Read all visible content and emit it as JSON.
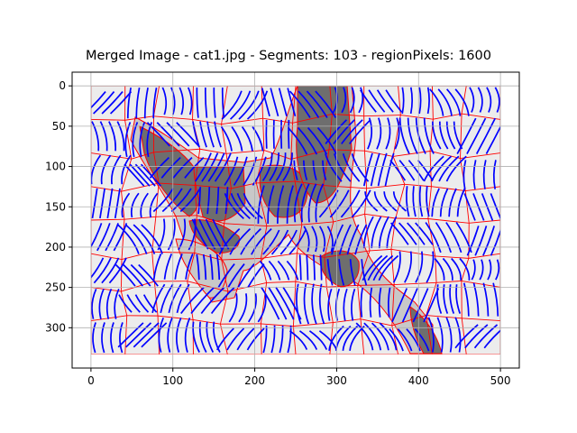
{
  "figure": {
    "title": "Merged Image - cat1.jpg - Segments: 103 - regionPixels: 1600"
  },
  "chart_data": {
    "type": "heatmap",
    "title": "Merged Image - cat1.jpg - Segments: 103 - regionPixels: 1600",
    "xlabel": "",
    "ylabel": "",
    "xlim": [
      -23,
      523
    ],
    "ylim": [
      350,
      -17
    ],
    "x_ticks": [
      0,
      100,
      200,
      300,
      400,
      500
    ],
    "y_ticks": [
      0,
      50,
      100,
      150,
      200,
      250,
      300
    ],
    "grid": true,
    "image_extent": {
      "x": [
        0,
        500
      ],
      "y": [
        0,
        333
      ]
    },
    "boundary_color": "#ff0000",
    "hatch_color": "#0000ff",
    "segment_fill_light": "#ececec",
    "segment_fill_mid": "#c8c8c8",
    "segment_fill_dark": "#6e6e6e"
  }
}
